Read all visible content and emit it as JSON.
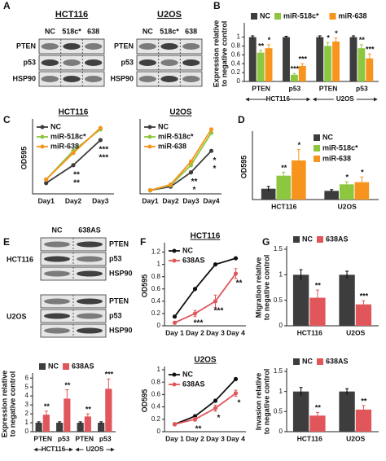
{
  "chart_data": [
    {
      "type": "bar",
      "panel": "B",
      "ylabel": [
        "Expression relative",
        "to negative control"
      ],
      "categories": [
        "PTEN",
        "p53",
        "PTEN",
        "p53"
      ],
      "groups": [
        "HCT116",
        "U2OS"
      ],
      "ylim": [
        0,
        1.25
      ],
      "yticks": [
        0,
        0.2,
        0.4,
        0.6,
        0.8,
        1
      ],
      "legend": "top",
      "series": [
        {
          "name": "NC",
          "color": "#3d3d3d",
          "values": [
            1,
            1,
            1,
            1
          ],
          "errors": [
            0.03,
            0.02,
            0.03,
            0.03
          ]
        },
        {
          "name": "miR-518c*",
          "color": "#8dc63f",
          "values": [
            0.65,
            0.15,
            0.8,
            0.75
          ],
          "errors": [
            0.05,
            0.03,
            0.08,
            0.08
          ],
          "significance": [
            "**",
            "***",
            "*",
            "**"
          ]
        },
        {
          "name": "miR-638",
          "color": "#f7941d",
          "values": [
            0.75,
            0.35,
            0.9,
            0.52
          ],
          "errors": [
            0.08,
            0.05,
            0.08,
            0.1
          ],
          "significance": [
            "*",
            "***",
            "*",
            "***"
          ]
        }
      ]
    },
    {
      "type": "line",
      "panel": "C",
      "title": "HCT116",
      "ylabel": [
        "OD595"
      ],
      "categories": [
        "Day1",
        "Day2",
        "Day3"
      ],
      "ylim": [
        0,
        1
      ],
      "legend": "upper left",
      "series": [
        {
          "name": "NC",
          "color": "#3d3d3d",
          "values": [
            0.15,
            0.4,
            0.75
          ]
        },
        {
          "name": "miR-518c*",
          "color": "#8dc63f",
          "values": [
            0.2,
            0.6,
            0.9
          ],
          "significance": [
            null,
            "**",
            "***"
          ]
        },
        {
          "name": "miR-638",
          "color": "#f7941d",
          "values": [
            0.2,
            0.57,
            0.92
          ],
          "significance": [
            null,
            "**",
            "***"
          ]
        }
      ]
    },
    {
      "type": "line",
      "title": "U2OS",
      "categories": [
        "Day1",
        "Day2",
        "Day3",
        "Day4"
      ],
      "ylim": [
        0,
        1
      ],
      "legend": "upper left",
      "series": [
        {
          "name": "NC",
          "color": "#3d3d3d",
          "values": [
            0.05,
            0.1,
            0.3,
            0.6
          ]
        },
        {
          "name": "miR-518c*",
          "color": "#8dc63f",
          "values": [
            0.05,
            0.12,
            0.4,
            0.85
          ],
          "significance": [
            null,
            null,
            "**",
            "*"
          ]
        },
        {
          "name": "miR-638",
          "color": "#f7941d",
          "values": [
            0.05,
            0.13,
            0.45,
            0.9
          ],
          "significance": [
            null,
            null,
            "*",
            "*"
          ]
        }
      ]
    },
    {
      "type": "bar",
      "panel": "D",
      "ylabel": [
        "OD595"
      ],
      "categories": [
        "HCT116",
        "U2OS"
      ],
      "ylim": [
        0,
        0.15
      ],
      "legend": "upper right",
      "series": [
        {
          "name": "NC",
          "color": "#3d3d3d",
          "values": [
            0.025,
            0.02
          ],
          "errors": [
            0.005,
            0.003
          ]
        },
        {
          "name": "miR-518c*",
          "color": "#8dc63f",
          "values": [
            0.055,
            0.035
          ],
          "errors": [
            0.008,
            0.006
          ],
          "significance": [
            "**",
            "*"
          ]
        },
        {
          "name": "miR-638",
          "color": "#f7941d",
          "values": [
            0.09,
            0.04
          ],
          "errors": [
            0.025,
            0.012
          ],
          "significance": [
            "*",
            "*"
          ]
        }
      ]
    },
    {
      "type": "bar",
      "ylabel": [
        "Expression relative",
        "to negative control"
      ],
      "categories": [
        "PTEN",
        "p53",
        "PTEN",
        "p53"
      ],
      "groups": [
        "HCT116",
        "U2OS"
      ],
      "ylim": [
        0,
        6.2
      ],
      "yticks": [
        0,
        1,
        2,
        3,
        4,
        5,
        6
      ],
      "legend": "top",
      "series": [
        {
          "name": "NC",
          "color": "#3d3d3d",
          "values": [
            1,
            1,
            1,
            1
          ],
          "errors": [
            0.1,
            0.1,
            0.1,
            0.1
          ]
        },
        {
          "name": "638AS",
          "color": "#e0565b",
          "values": [
            1.9,
            3.7,
            1.7,
            4.8
          ],
          "errors": [
            0.4,
            1.0,
            0.3,
            1.1
          ],
          "significance": [
            "**",
            "**",
            "**",
            "***"
          ]
        }
      ]
    },
    {
      "type": "line",
      "panel": "F",
      "title": "HCT116",
      "ylabel": [
        "OD595"
      ],
      "categories": [
        "Day 1",
        "Day 2",
        "Day 3",
        "Day 4"
      ],
      "ylim": [
        0,
        1.3
      ],
      "yticks": [
        0,
        0.2,
        0.4,
        0.6,
        0.8,
        1,
        1.2
      ],
      "legend": "upper left",
      "series": [
        {
          "name": "NC",
          "color": "#111111",
          "values": [
            0.15,
            0.6,
            1.0,
            1.1
          ]
        },
        {
          "name": "638AS",
          "color": "#e0565b",
          "values": [
            0.05,
            0.2,
            0.4,
            0.85
          ],
          "errors": [
            0.02,
            0.05,
            0.1,
            0.08
          ],
          "significance": [
            null,
            "***",
            "***",
            "**"
          ]
        }
      ]
    },
    {
      "type": "line",
      "title": "U2OS",
      "ylabel": [
        "OD595"
      ],
      "categories": [
        "Day 1",
        "Day 2",
        "Day 3",
        "Day 4"
      ],
      "ylim": [
        0,
        1
      ],
      "yticks": [
        0,
        0.2,
        0.4,
        0.6,
        0.8,
        1
      ],
      "legend": "upper left",
      "series": [
        {
          "name": "NC",
          "color": "#111111",
          "values": [
            0.12,
            0.25,
            0.5,
            0.85
          ]
        },
        {
          "name": "638AS",
          "color": "#e0565b",
          "values": [
            0.12,
            0.2,
            0.38,
            0.62
          ],
          "errors": [
            0.02,
            0.03,
            0.05,
            0.05
          ],
          "significance": [
            null,
            "**",
            "*",
            "*"
          ]
        }
      ]
    },
    {
      "type": "bar",
      "panel": "G",
      "ylabel": [
        "Migration relative",
        "to negative control"
      ],
      "categories": [
        "HCT116",
        "U2OS"
      ],
      "ylim": [
        0,
        1.5
      ],
      "yticks": [
        0,
        0.5,
        1,
        1.5
      ],
      "legend": "top",
      "series": [
        {
          "name": "NC",
          "color": "#3d3d3d",
          "values": [
            1,
            1
          ],
          "errors": [
            0.1,
            0.07
          ]
        },
        {
          "name": "638AS",
          "color": "#e0565b",
          "values": [
            0.55,
            0.42
          ],
          "errors": [
            0.15,
            0.07
          ],
          "significance": [
            "**",
            "***"
          ]
        }
      ]
    },
    {
      "type": "bar",
      "ylabel": [
        "Invasion relative",
        "to negative control"
      ],
      "categories": [
        "HCT116",
        "U2OS"
      ],
      "ylim": [
        0,
        1.5
      ],
      "yticks": [
        0,
        0.5,
        1,
        1.5
      ],
      "legend": "top",
      "series": [
        {
          "name": "NC",
          "color": "#3d3d3d",
          "values": [
            1,
            1
          ],
          "errors": [
            0.1,
            0.07
          ]
        },
        {
          "name": "638AS",
          "color": "#e0565b",
          "values": [
            0.4,
            0.55
          ],
          "errors": [
            0.08,
            0.1
          ],
          "significance": [
            "**",
            "**"
          ]
        }
      ]
    }
  ],
  "blots": [
    {
      "panel": "A",
      "title": "HCT116",
      "lanes": [
        "NC",
        "518c*",
        "638"
      ],
      "rows": [
        "PTEN",
        "p53",
        "HSP90"
      ]
    },
    {
      "title": "U2OS",
      "lanes": [
        "NC",
        "518c*",
        "638"
      ],
      "rows": [
        "PTEN",
        "p53",
        "HSP90"
      ]
    },
    {
      "panel": "E",
      "side": "HCT116",
      "lanes": [
        "NC",
        "638AS"
      ],
      "rows": [
        "PTEN",
        "p53",
        "HSP90"
      ]
    },
    {
      "side": "U2OS",
      "rows": [
        "PTEN",
        "p53",
        "HSP90"
      ]
    }
  ]
}
